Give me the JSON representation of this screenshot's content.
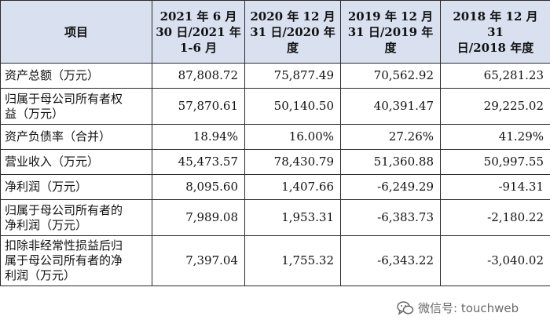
{
  "table": {
    "headers": [
      "项目",
      "2021 年 6 月\n30 日/2021 年\n1-6 月",
      "2020 年 12 月\n31 日/2020 年\n度",
      "2019 年 12 月\n31 日/2019 年\n度",
      "2018 年 12 月 31\n日/2018 年度"
    ],
    "rows": [
      {
        "label": "资产总额（万元）",
        "values": [
          "87,808.72",
          "75,877.49",
          "70,562.92",
          "65,281.23"
        ]
      },
      {
        "label": "归属于母公司所有者权\n益（万元）",
        "values": [
          "57,870.61",
          "50,140.50",
          "40,391.47",
          "29,225.02"
        ]
      },
      {
        "label": "资产负债率（合并）",
        "values": [
          "18.94%",
          "16.00%",
          "27.26%",
          "41.29%"
        ]
      },
      {
        "label": "营业收入（万元）",
        "values": [
          "45,473.57",
          "78,430.79",
          "51,360.88",
          "50,997.55"
        ]
      },
      {
        "label": "净利润（万元）",
        "values": [
          "8,095.60",
          "1,407.66",
          "-6,249.29",
          "-914.31"
        ]
      },
      {
        "label": "归属于母公司所有者的\n净利润（万元）",
        "values": [
          "7,989.08",
          "1,953.31",
          "-6,383.73",
          "-2,180.22"
        ]
      },
      {
        "label": "扣除非经常性损益后归\n属于母公司所有者的净\n利润（万元）",
        "values": [
          "7,397.04",
          "1,755.32",
          "-6,343.22",
          "-3,040.02"
        ]
      }
    ]
  },
  "watermark": {
    "text": "微信号: touchweb",
    "icon": "wechat-icon"
  },
  "colors": {
    "header_bg": "#d9e1f0",
    "border": "#2a2a2a"
  }
}
